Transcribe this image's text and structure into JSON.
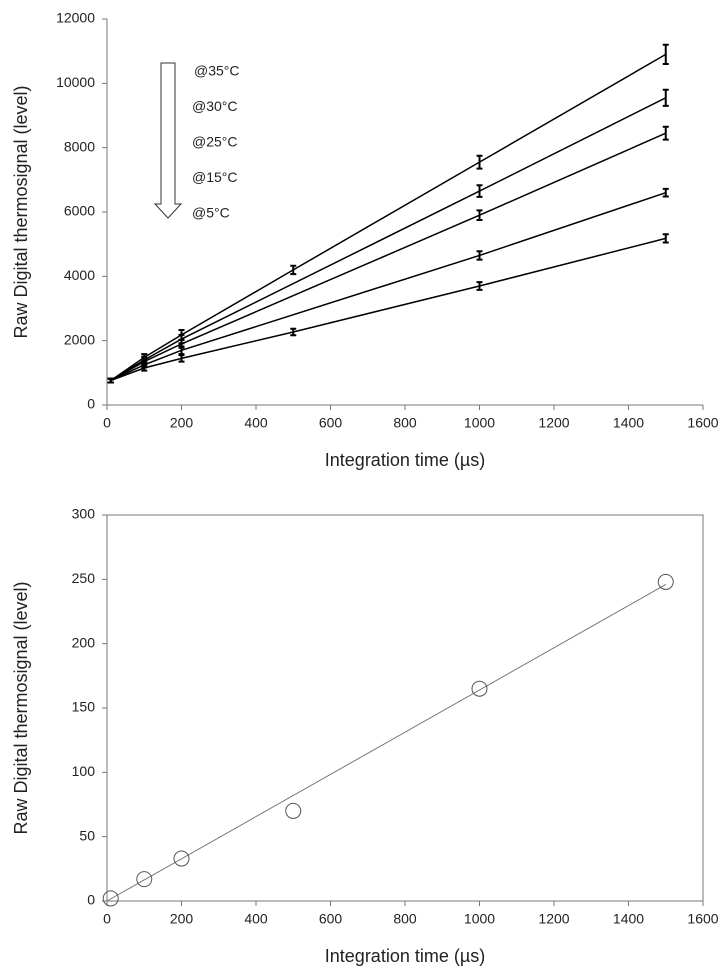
{
  "chart_data": [
    {
      "type": "line",
      "x_label": "Integration time (µs)",
      "y_label": "Raw Digital thermosignal (level)",
      "annotations": [
        "@35°C",
        "@30°C",
        "@25°C",
        "@15°C",
        "@5°C"
      ],
      "xlim": [
        0,
        1600
      ],
      "xticks": [
        0,
        200,
        400,
        600,
        800,
        1000,
        1200,
        1400,
        1600
      ],
      "ylim": [
        0,
        12000
      ],
      "yticks": [
        0,
        2000,
        4000,
        6000,
        8000,
        10000,
        12000
      ],
      "frame": false,
      "series": [
        {
          "color": "#000000",
          "x": [
            10,
            100,
            200,
            500,
            1000,
            1500
          ],
          "values": [
            760,
            1480,
            2180,
            4200,
            7550,
            10900
          ],
          "errors": [
            60,
            100,
            150,
            130,
            200,
            300
          ]
        },
        {
          "color": "#000000",
          "x": [
            10,
            100,
            200,
            1000,
            1500
          ],
          "values": [
            760,
            1400,
            2050,
            6650,
            9550
          ],
          "errors": [
            60,
            100,
            130,
            180,
            250
          ]
        },
        {
          "color": "#000000",
          "x": [
            10,
            100,
            200,
            1000,
            1500
          ],
          "values": [
            760,
            1350,
            1900,
            5900,
            8450
          ],
          "errors": [
            60,
            100,
            120,
            150,
            200
          ]
        },
        {
          "color": "#000000",
          "x": [
            10,
            100,
            200,
            1000,
            1500
          ],
          "values": [
            760,
            1250,
            1700,
            4650,
            6600
          ],
          "errors": [
            60,
            80,
            120,
            130,
            120
          ]
        },
        {
          "color": "#000000",
          "x": [
            10,
            100,
            200,
            500,
            1000,
            1500
          ],
          "values": [
            760,
            1150,
            1450,
            2270,
            3700,
            5180
          ],
          "errors": [
            60,
            80,
            100,
            100,
            120,
            130
          ]
        }
      ]
    },
    {
      "type": "scatter",
      "x_label": "Integration time (µs)",
      "y_label": "Raw Digital thermosignal (level)",
      "xlim": [
        0,
        1600
      ],
      "xticks": [
        0,
        200,
        400,
        600,
        800,
        1000,
        1200,
        1400,
        1600
      ],
      "ylim": [
        0,
        300
      ],
      "yticks": [
        0,
        50,
        100,
        150,
        200,
        250,
        300
      ],
      "frame": true,
      "series": [
        {
          "color": "#555555",
          "x": [
            10,
            100,
            200,
            500,
            1000,
            1500
          ],
          "values": [
            2,
            17,
            33,
            70,
            165,
            248
          ]
        }
      ],
      "trendline": {
        "color": "#777777",
        "x": [
          0,
          1500
        ],
        "values": [
          0,
          246
        ]
      }
    }
  ]
}
